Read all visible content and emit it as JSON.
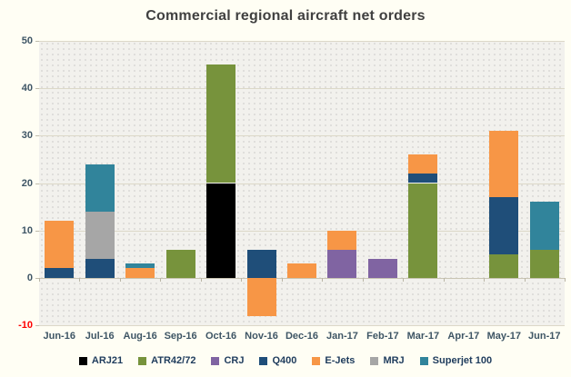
{
  "chart_data": {
    "type": "bar",
    "stacked": true,
    "title": "Commercial regional aircraft net orders",
    "categories": [
      "Jun-16",
      "Jul-16",
      "Aug-16",
      "Sep-16",
      "Oct-16",
      "Nov-16",
      "Dec-16",
      "Jan-17",
      "Feb-17",
      "Mar-17",
      "Apr-17",
      "May-17",
      "Jun-17"
    ],
    "series": [
      {
        "name": "ARJ21",
        "color": "#000000",
        "values": [
          0,
          0,
          0,
          0,
          20,
          0,
          0,
          0,
          0,
          0,
          0,
          0,
          0
        ]
      },
      {
        "name": "ATR42/72",
        "color": "#77933C",
        "values": [
          0,
          0,
          0,
          6,
          25,
          0,
          0,
          0,
          0,
          20,
          0,
          5,
          6
        ]
      },
      {
        "name": "CRJ",
        "color": "#8064A2",
        "values": [
          0,
          0,
          0,
          0,
          0,
          0,
          0,
          6,
          4,
          0,
          0,
          0,
          0
        ]
      },
      {
        "name": "Q400",
        "color": "#1F4E79",
        "values": [
          2,
          4,
          0,
          0,
          0,
          6,
          0,
          0,
          0,
          2,
          0,
          12,
          0
        ]
      },
      {
        "name": "E-Jets",
        "color": "#F79646",
        "values": [
          10,
          0,
          2,
          0,
          0,
          -8,
          3,
          4,
          0,
          4,
          0,
          14,
          0
        ]
      },
      {
        "name": "MRJ",
        "color": "#A6A6A6",
        "values": [
          0,
          10,
          0,
          0,
          0,
          0,
          0,
          0,
          0,
          0,
          0,
          0,
          0
        ]
      },
      {
        "name": "Superjet 100",
        "color": "#31849B",
        "values": [
          0,
          10,
          1,
          0,
          0,
          0,
          0,
          0,
          0,
          0,
          0,
          0,
          10
        ]
      }
    ],
    "totals": [
      12,
      24,
      3,
      6,
      45,
      -2,
      3,
      10,
      4,
      26,
      0,
      31,
      16
    ],
    "ylim": [
      -10,
      50
    ],
    "yticks": [
      50,
      40,
      30,
      20,
      10,
      0,
      -10
    ],
    "ytick_color": "#3e5565",
    "negative_tick_color": "#FF0000",
    "grid": true,
    "legend_position": "bottom",
    "xlabel": "",
    "ylabel": ""
  }
}
